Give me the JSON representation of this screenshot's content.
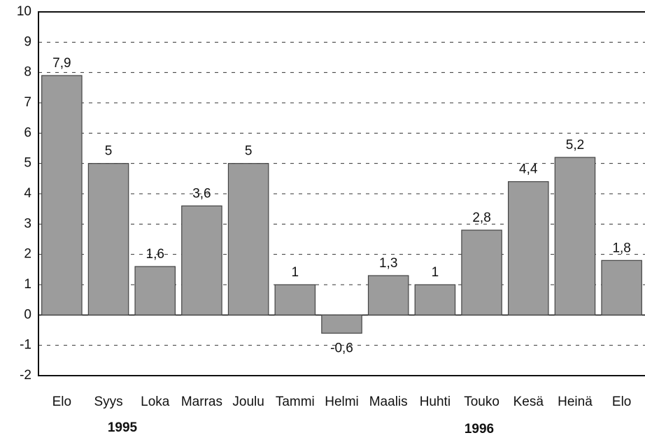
{
  "chart_data": {
    "type": "bar",
    "categories": [
      "Elo",
      "Syys",
      "Loka",
      "Marras",
      "Joulu",
      "Tammi",
      "Helmi",
      "Maalis",
      "Huhti",
      "Touko",
      "Kesä",
      "Heinä",
      "Elo"
    ],
    "values": [
      7.9,
      5,
      1.6,
      3.6,
      5,
      1,
      -0.6,
      1.3,
      1,
      2.8,
      4.4,
      5.2,
      1.8
    ],
    "value_labels": [
      "7,9",
      "5",
      "1,6",
      "3,6",
      "5",
      "1",
      "-0,6",
      "1,3",
      "1",
      "2,8",
      "4,4",
      "5,2",
      "1,8"
    ],
    "color": "#9c9c9c",
    "ylim": [
      -2,
      10
    ],
    "yticks": [
      -2,
      -1,
      0,
      1,
      2,
      3,
      4,
      5,
      6,
      7,
      8,
      9,
      10
    ],
    "grid": true,
    "annotations": [
      "1995",
      "1996"
    ]
  }
}
